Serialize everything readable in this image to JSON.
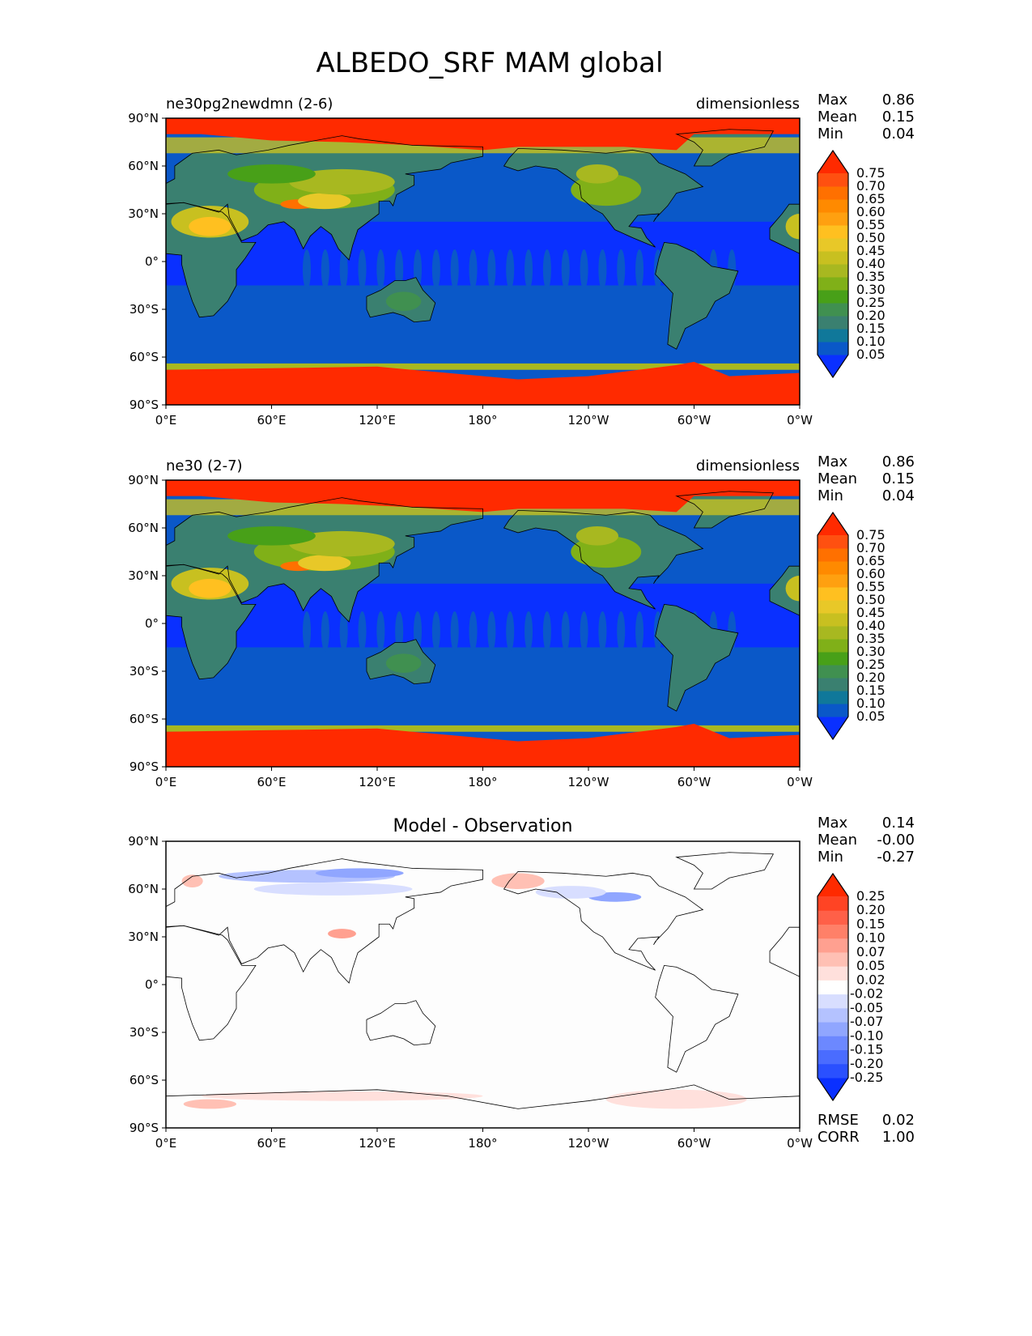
{
  "chart_data": [
    {
      "type": "heatmap",
      "figure_title": "ALBEDO_SRF MAM global",
      "title_left": "ne30pg2newdmn (2-6)",
      "title_center": "",
      "title_right": "dimensionless",
      "stats": [
        [
          "Max",
          "0.86"
        ],
        [
          "Mean",
          "0.15"
        ],
        [
          "Min",
          "0.04"
        ]
      ],
      "levels": [
        "0.05",
        "0.10",
        "0.15",
        "0.20",
        "0.25",
        "0.30",
        "0.35",
        "0.40",
        "0.45",
        "0.50",
        "0.55",
        "0.60",
        "0.65",
        "0.70",
        "0.75"
      ],
      "colors": [
        "#0a30ff",
        "#0a58c8",
        "#10789a",
        "#3a8070",
        "#409050",
        "#48a018",
        "#80b018",
        "#a8b820",
        "#c8c020",
        "#e8c828",
        "#ffc020",
        "#ffa010",
        "#ff8a00",
        "#ff7000",
        "#ff5010",
        "#ff2a00"
      ],
      "xticks": [
        "0°E",
        "60°E",
        "120°E",
        "180°",
        "120°W",
        "60°W",
        "0°W"
      ],
      "yticks": [
        "90°N",
        "60°N",
        "30°N",
        "0°",
        "30°S",
        "60°S",
        "90°S"
      ],
      "footer": []
    },
    {
      "type": "heatmap",
      "title_left": "ne30 (2-7)",
      "title_center": "",
      "title_right": "dimensionless",
      "stats": [
        [
          "Max",
          "0.86"
        ],
        [
          "Mean",
          "0.15"
        ],
        [
          "Min",
          "0.04"
        ]
      ],
      "levels": [
        "0.05",
        "0.10",
        "0.15",
        "0.20",
        "0.25",
        "0.30",
        "0.35",
        "0.40",
        "0.45",
        "0.50",
        "0.55",
        "0.60",
        "0.65",
        "0.70",
        "0.75"
      ],
      "colors": [
        "#0a30ff",
        "#0a58c8",
        "#10789a",
        "#3a8070",
        "#409050",
        "#48a018",
        "#80b018",
        "#a8b820",
        "#c8c020",
        "#e8c828",
        "#ffc020",
        "#ffa010",
        "#ff8a00",
        "#ff7000",
        "#ff5010",
        "#ff2a00"
      ],
      "xticks": [
        "0°E",
        "60°E",
        "120°E",
        "180°",
        "120°W",
        "60°W",
        "0°W"
      ],
      "yticks": [
        "90°N",
        "60°N",
        "30°N",
        "0°",
        "30°S",
        "60°S",
        "90°S"
      ],
      "footer": []
    },
    {
      "type": "heatmap",
      "title_left": "",
      "title_center": "Model - Observation",
      "title_right": "",
      "stats": [
        [
          "Max",
          "0.14"
        ],
        [
          "Mean",
          "-0.00"
        ],
        [
          "Min",
          "-0.27"
        ]
      ],
      "levels": [
        "-0.25",
        "-0.20",
        "-0.15",
        "-0.10",
        "-0.07",
        "-0.05",
        "-0.02",
        "0.02",
        "0.05",
        "0.07",
        "0.10",
        "0.15",
        "0.20",
        "0.25"
      ],
      "colors": [
        "#0a30ff",
        "#2a50ff",
        "#4a6cff",
        "#6c88ff",
        "#90a6ff",
        "#b4c2ff",
        "#d8deff",
        "#ffffff",
        "#ffe0dc",
        "#ffc0b4",
        "#ffa090",
        "#ff8068",
        "#ff6048",
        "#ff4424",
        "#ff2a00"
      ],
      "xticks": [
        "0°E",
        "60°E",
        "120°E",
        "180°",
        "120°W",
        "60°W",
        "0°W"
      ],
      "yticks": [
        "90°N",
        "60°N",
        "30°N",
        "0°",
        "30°S",
        "60°S",
        "90°S"
      ],
      "footer": [
        [
          "RMSE",
          "0.02"
        ],
        [
          "CORR",
          "1.00"
        ]
      ]
    }
  ]
}
